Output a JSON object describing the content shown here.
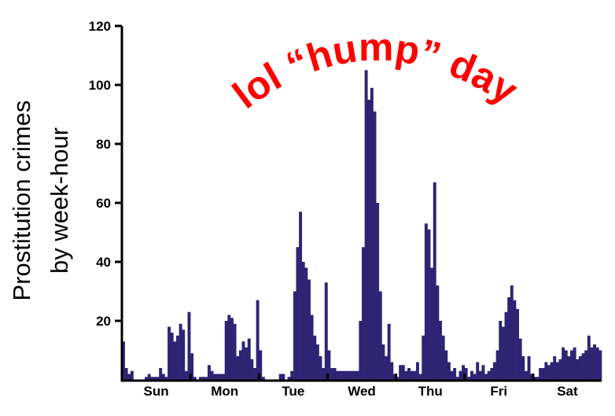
{
  "chart_data": {
    "type": "bar",
    "ylabel_line1": "Prostitution crimes",
    "ylabel_line2": "by week-hour",
    "annotation": "lol “hump” day",
    "ylim": [
      0,
      120
    ],
    "yticks": [
      20,
      40,
      60,
      80,
      100,
      120
    ],
    "grid": false,
    "days": [
      "Sun",
      "Mon",
      "Tue",
      "Wed",
      "Thu",
      "Fri",
      "Sat"
    ],
    "hours_per_day": 24,
    "values": [
      13,
      4,
      2,
      3,
      0,
      0,
      0,
      0,
      1,
      2,
      1,
      1,
      1,
      4,
      2,
      1,
      18,
      16,
      13,
      15,
      19,
      17,
      3,
      23,
      9,
      1,
      0,
      1,
      1,
      1,
      5,
      3,
      2,
      2,
      2,
      2,
      20,
      22,
      21,
      19,
      8,
      10,
      13,
      11,
      14,
      7,
      4,
      27,
      10,
      1,
      0,
      0,
      0,
      0,
      0,
      2,
      2,
      0,
      1,
      3,
      30,
      45,
      57,
      40,
      38,
      34,
      22,
      15,
      12,
      8,
      4,
      33,
      10,
      4,
      4,
      3,
      3,
      3,
      3,
      3,
      3,
      3,
      3,
      20,
      45,
      105,
      95,
      99,
      91,
      60,
      30,
      12,
      8,
      19,
      6,
      2,
      1,
      5,
      5,
      3,
      4,
      3,
      3,
      6,
      2,
      15,
      53,
      51,
      38,
      67,
      32,
      20,
      15,
      10,
      6,
      3,
      4,
      1,
      3,
      5,
      4,
      1,
      3,
      2,
      6,
      3,
      5,
      2,
      3,
      4,
      6,
      10,
      20,
      18,
      23,
      28,
      32,
      27,
      24,
      14,
      8,
      3,
      8,
      2,
      1,
      1,
      4,
      4,
      6,
      5,
      6,
      8,
      6,
      7,
      11,
      10,
      8,
      10,
      11,
      7,
      8,
      9,
      10,
      15,
      11,
      12,
      11,
      10
    ]
  }
}
